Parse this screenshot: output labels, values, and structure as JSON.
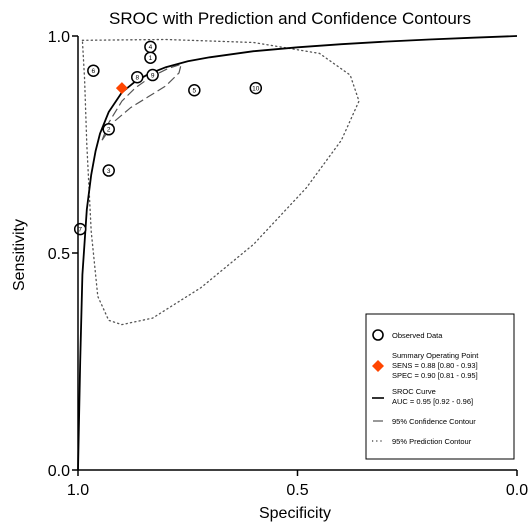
{
  "chart_data": {
    "type": "scatter",
    "title": "SROC with Prediction and Confidence Contours",
    "xlabel": "Specificity",
    "ylabel": "Sensitivity",
    "xlim": [
      1.0,
      0.0
    ],
    "ylim": [
      0.0,
      1.0
    ],
    "x_reversed": true,
    "x_ticks": [
      "1.0",
      "0.5",
      "0.0"
    ],
    "x_tick_values": [
      1.0,
      0.5,
      0.0
    ],
    "y_ticks": [
      "0.0",
      "0.5",
      "1.0"
    ],
    "y_tick_values": [
      0.0,
      0.5,
      1.0
    ],
    "grid": false,
    "legend_position": "bottom-right",
    "observed_studies": [
      {
        "label": "1",
        "specificity": 0.835,
        "sensitivity": 0.95
      },
      {
        "label": "2",
        "specificity": 0.93,
        "sensitivity": 0.785
      },
      {
        "label": "3",
        "specificity": 0.93,
        "sensitivity": 0.69
      },
      {
        "label": "4",
        "specificity": 0.835,
        "sensitivity": 0.975
      },
      {
        "label": "5",
        "specificity": 0.735,
        "sensitivity": 0.875
      },
      {
        "label": "6",
        "specificity": 0.965,
        "sensitivity": 0.92
      },
      {
        "label": "7",
        "specificity": 0.995,
        "sensitivity": 0.555
      },
      {
        "label": "8",
        "specificity": 0.865,
        "sensitivity": 0.905
      },
      {
        "label": "9",
        "specificity": 0.83,
        "sensitivity": 0.91
      },
      {
        "label": "10",
        "specificity": 0.595,
        "sensitivity": 0.88
      }
    ],
    "summary_point": {
      "specificity": 0.9,
      "sensitivity": 0.88
    },
    "sroc_curve": [
      [
        1.0,
        0.0
      ],
      [
        0.995,
        0.25
      ],
      [
        0.99,
        0.45
      ],
      [
        0.98,
        0.6
      ],
      [
        0.97,
        0.68
      ],
      [
        0.96,
        0.735
      ],
      [
        0.95,
        0.775
      ],
      [
        0.93,
        0.825
      ],
      [
        0.9,
        0.87
      ],
      [
        0.87,
        0.895
      ],
      [
        0.84,
        0.912
      ],
      [
        0.8,
        0.928
      ],
      [
        0.75,
        0.942
      ],
      [
        0.7,
        0.951
      ],
      [
        0.6,
        0.965
      ],
      [
        0.5,
        0.974
      ],
      [
        0.4,
        0.981
      ],
      [
        0.3,
        0.987
      ],
      [
        0.2,
        0.992
      ],
      [
        0.1,
        0.996
      ],
      [
        0.0,
        1.0
      ]
    ],
    "confidence_contour": [
      [
        0.945,
        0.76
      ],
      [
        0.93,
        0.8
      ],
      [
        0.9,
        0.85
      ],
      [
        0.87,
        0.88
      ],
      [
        0.835,
        0.905
      ],
      [
        0.795,
        0.925
      ],
      [
        0.765,
        0.935
      ],
      [
        0.77,
        0.915
      ],
      [
        0.8,
        0.885
      ],
      [
        0.84,
        0.86
      ],
      [
        0.88,
        0.835
      ],
      [
        0.915,
        0.805
      ],
      [
        0.945,
        0.76
      ]
    ],
    "prediction_contour": [
      [
        0.99,
        0.99
      ],
      [
        0.8,
        0.992
      ],
      [
        0.6,
        0.985
      ],
      [
        0.45,
        0.96
      ],
      [
        0.38,
        0.91
      ],
      [
        0.36,
        0.85
      ],
      [
        0.4,
        0.76
      ],
      [
        0.48,
        0.65
      ],
      [
        0.6,
        0.52
      ],
      [
        0.72,
        0.42
      ],
      [
        0.83,
        0.35
      ],
      [
        0.9,
        0.335
      ],
      [
        0.93,
        0.345
      ],
      [
        0.955,
        0.4
      ],
      [
        0.97,
        0.55
      ],
      [
        0.98,
        0.75
      ],
      [
        0.985,
        0.9
      ],
      [
        0.99,
        0.99
      ]
    ],
    "legend": {
      "observed": "Observed Data",
      "summary_lines": [
        "Summary Operating Point",
        "SENS = 0.88 [0.80 - 0.93]",
        "SPEC = 0.90 [0.81 - 0.95]"
      ],
      "sroc_lines": [
        "SROC Curve",
        "AUC = 0.95 [0.92 - 0.96]"
      ],
      "confidence": "95% Confidence Contour",
      "prediction": "95% Prediction Contour"
    },
    "colors": {
      "summary_point": "#ff4500",
      "lines": "#000000",
      "contours": "#555555"
    }
  }
}
